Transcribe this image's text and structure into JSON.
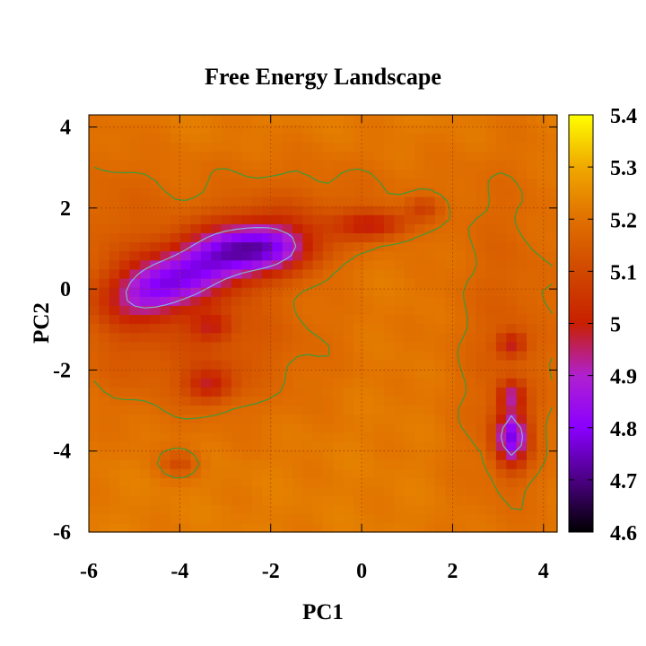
{
  "chart_data": {
    "type": "heatmap",
    "title": "Free Energy Landscape",
    "xlabel": "PC1",
    "ylabel": "PC2",
    "xlim": [
      -6,
      4.3
    ],
    "ylim": [
      -6,
      4.3
    ],
    "x_ticks": [
      -6,
      -4,
      -2,
      0,
      2,
      4
    ],
    "y_ticks": [
      -6,
      -4,
      -2,
      0,
      2,
      4
    ],
    "x_tick_labels": [
      "-6",
      "-4",
      "-2",
      "0",
      "2",
      "4"
    ],
    "y_tick_labels": [
      "-6",
      "-4",
      "-2",
      "0",
      "2",
      "4"
    ],
    "grid": true,
    "colorbar": {
      "range": [
        4.6,
        5.4
      ],
      "ticks": [
        4.6,
        4.7,
        4.8,
        4.9,
        5,
        5.1,
        5.2,
        5.3,
        5.4
      ],
      "tick_labels": [
        "4.6",
        "4.7",
        "4.8",
        "4.9",
        "5",
        "5.1",
        "5.2",
        "5.3",
        "5.4"
      ],
      "palette": [
        "#000000",
        "#4b0082",
        "#8a00ff",
        "#b020d0",
        "#c82000",
        "#d04800",
        "#e07000",
        "#f0a800",
        "#ffff00"
      ]
    },
    "background_value": 5.22,
    "basins": [
      {
        "x": -3.2,
        "y": 0.75,
        "sx": 1.25,
        "sy": 0.55,
        "depth": 0.36,
        "rot": 0.35
      },
      {
        "x": -4.6,
        "y": -0.1,
        "sx": 0.7,
        "sy": 0.45,
        "depth": 0.2,
        "rot": 0.3
      },
      {
        "x": -2.0,
        "y": 1.0,
        "sx": 0.8,
        "sy": 0.4,
        "depth": 0.2,
        "rot": 0.0
      },
      {
        "x": 0.25,
        "y": 1.6,
        "sx": 0.55,
        "sy": 0.25,
        "depth": 0.2,
        "rot": 0.0
      },
      {
        "x": 1.35,
        "y": 2.0,
        "sx": 0.25,
        "sy": 0.2,
        "depth": 0.1,
        "rot": 0.0
      },
      {
        "x": -3.35,
        "y": -2.35,
        "sx": 0.35,
        "sy": 0.3,
        "depth": 0.18,
        "rot": 0.0
      },
      {
        "x": -4.0,
        "y": -4.3,
        "sx": 0.3,
        "sy": 0.22,
        "depth": 0.1,
        "rot": 0.0
      },
      {
        "x": 3.3,
        "y": -3.65,
        "sx": 0.25,
        "sy": 0.5,
        "depth": 0.38,
        "rot": 0.0
      },
      {
        "x": 3.3,
        "y": -2.6,
        "sx": 0.2,
        "sy": 0.25,
        "depth": 0.2,
        "rot": 0.0
      },
      {
        "x": 3.3,
        "y": -1.35,
        "sx": 0.22,
        "sy": 0.22,
        "depth": 0.18,
        "rot": 0.0
      },
      {
        "x": -3.3,
        "y": -0.9,
        "sx": 0.3,
        "sy": 0.25,
        "depth": 0.14,
        "rot": 0.0
      }
    ],
    "ridges": [
      {
        "x": -3.5,
        "y": -1.2,
        "sx": 1.8,
        "sy": 1.3,
        "depth": 0.1
      },
      {
        "x": -1.5,
        "y": 2.2,
        "sx": 2.5,
        "sy": 0.9,
        "depth": 0.05
      },
      {
        "x": 3.2,
        "y": -1.5,
        "sx": 0.9,
        "sy": 3.0,
        "depth": 0.07
      },
      {
        "x": -5.5,
        "y": 1.0,
        "sx": 0.8,
        "sy": 2.0,
        "depth": 0.05
      }
    ],
    "contour_level": 5.18,
    "contour_level_inner": 4.92
  }
}
